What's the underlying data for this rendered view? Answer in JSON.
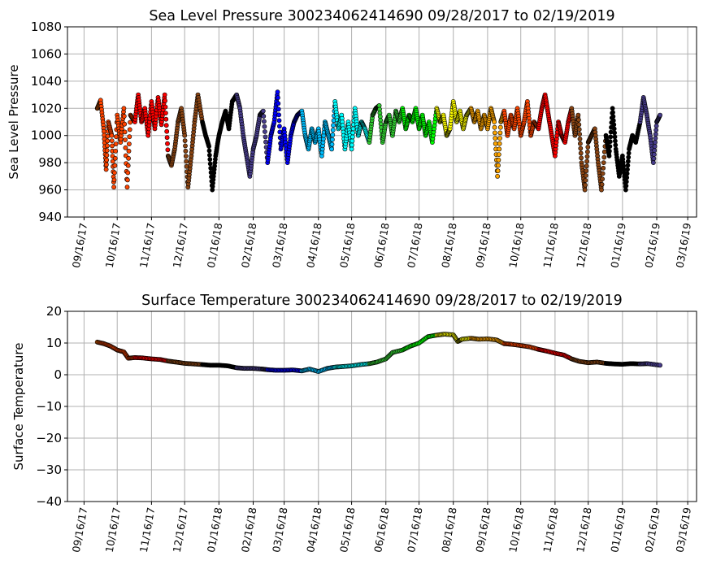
{
  "chart_data": [
    {
      "type": "scatter",
      "title": "Sea Level Pressure 300234062414690  09/28/2017 to 02/19/2019",
      "xlabel": "",
      "ylabel": "Sea Level Pressure",
      "ylim": [
        940,
        1080
      ],
      "yticks": [
        940,
        960,
        980,
        1000,
        1020,
        1040,
        1060,
        1080
      ],
      "xlim": [
        "2017-09-01",
        "2019-03-24"
      ],
      "xtick_labels": [
        "09/16/17",
        "10/16/17",
        "11/16/17",
        "12/16/17",
        "01/16/18",
        "02/16/18",
        "03/16/18",
        "04/16/18",
        "05/16/18",
        "06/16/18",
        "07/16/18",
        "08/16/18",
        "09/16/18",
        "10/16/18",
        "11/16/18",
        "12/16/18",
        "01/16/19",
        "02/16/19",
        "03/16/19"
      ],
      "xtick_dates": [
        "2017-09-16",
        "2017-10-16",
        "2017-11-16",
        "2017-12-16",
        "2018-01-16",
        "2018-02-16",
        "2018-03-16",
        "2018-04-16",
        "2018-05-16",
        "2018-06-16",
        "2018-07-16",
        "2018-08-16",
        "2018-09-16",
        "2018-10-16",
        "2018-11-16",
        "2018-12-16",
        "2019-01-16",
        "2019-02-16",
        "2019-03-16"
      ],
      "grid": true,
      "points": [
        [
          "2017-09-28",
          1020
        ],
        [
          "2017-10-01",
          1026
        ],
        [
          "2017-10-04",
          1003
        ],
        [
          "2017-10-06",
          975
        ],
        [
          "2017-10-08",
          1010
        ],
        [
          "2017-10-11",
          1000
        ],
        [
          "2017-10-13",
          962
        ],
        [
          "2017-10-16",
          1015
        ],
        [
          "2017-10-19",
          995
        ],
        [
          "2017-10-22",
          1020
        ],
        [
          "2017-10-25",
          962
        ],
        [
          "2017-10-28",
          1015
        ],
        [
          "2017-11-01",
          1010
        ],
        [
          "2017-11-04",
          1030
        ],
        [
          "2017-11-07",
          1010
        ],
        [
          "2017-11-10",
          1020
        ],
        [
          "2017-11-13",
          1000
        ],
        [
          "2017-11-16",
          1025
        ],
        [
          "2017-11-19",
          1005
        ],
        [
          "2017-11-22",
          1028
        ],
        [
          "2017-11-25",
          1008
        ],
        [
          "2017-11-28",
          1030
        ],
        [
          "2017-12-01",
          985
        ],
        [
          "2017-12-04",
          978
        ],
        [
          "2017-12-07",
          990
        ],
        [
          "2017-12-10",
          1010
        ],
        [
          "2017-12-13",
          1020
        ],
        [
          "2017-12-16",
          1000
        ],
        [
          "2017-12-19",
          962
        ],
        [
          "2017-12-22",
          985
        ],
        [
          "2017-12-25",
          1010
        ],
        [
          "2017-12-28",
          1030
        ],
        [
          "2018-01-01",
          1010
        ],
        [
          "2018-01-04",
          1000
        ],
        [
          "2018-01-07",
          992
        ],
        [
          "2018-01-10",
          960
        ],
        [
          "2018-01-13",
          985
        ],
        [
          "2018-01-16",
          1000
        ],
        [
          "2018-01-19",
          1010
        ],
        [
          "2018-01-22",
          1018
        ],
        [
          "2018-01-25",
          1005
        ],
        [
          "2018-01-28",
          1025
        ],
        [
          "2018-02-01",
          1030
        ],
        [
          "2018-02-04",
          1020
        ],
        [
          "2018-02-07",
          1000
        ],
        [
          "2018-02-10",
          985
        ],
        [
          "2018-02-13",
          970
        ],
        [
          "2018-02-16",
          990
        ],
        [
          "2018-02-19",
          1000
        ],
        [
          "2018-02-22",
          1015
        ],
        [
          "2018-02-25",
          1018
        ],
        [
          "2018-03-01",
          980
        ],
        [
          "2018-03-04",
          1000
        ],
        [
          "2018-03-07",
          1010
        ],
        [
          "2018-03-10",
          1032
        ],
        [
          "2018-03-13",
          990
        ],
        [
          "2018-03-16",
          1005
        ],
        [
          "2018-03-19",
          980
        ],
        [
          "2018-03-22",
          1000
        ],
        [
          "2018-03-25",
          1010
        ],
        [
          "2018-03-28",
          1015
        ],
        [
          "2018-04-01",
          1018
        ],
        [
          "2018-04-04",
          1000
        ],
        [
          "2018-04-07",
          990
        ],
        [
          "2018-04-10",
          1005
        ],
        [
          "2018-04-13",
          995
        ],
        [
          "2018-04-16",
          1005
        ],
        [
          "2018-04-19",
          985
        ],
        [
          "2018-04-22",
          1010
        ],
        [
          "2018-04-25",
          1000
        ],
        [
          "2018-04-28",
          990
        ],
        [
          "2018-05-01",
          1025
        ],
        [
          "2018-05-04",
          1005
        ],
        [
          "2018-05-07",
          1015
        ],
        [
          "2018-05-10",
          990
        ],
        [
          "2018-05-13",
          1010
        ],
        [
          "2018-05-16",
          990
        ],
        [
          "2018-05-19",
          1020
        ],
        [
          "2018-05-22",
          1000
        ],
        [
          "2018-05-25",
          1010
        ],
        [
          "2018-05-28",
          1005
        ],
        [
          "2018-06-01",
          995
        ],
        [
          "2018-06-04",
          1015
        ],
        [
          "2018-06-07",
          1020
        ],
        [
          "2018-06-10",
          1022
        ],
        [
          "2018-06-13",
          995
        ],
        [
          "2018-06-16",
          1010
        ],
        [
          "2018-06-19",
          1015
        ],
        [
          "2018-06-22",
          1000
        ],
        [
          "2018-06-25",
          1018
        ],
        [
          "2018-06-28",
          1010
        ],
        [
          "2018-07-01",
          1020
        ],
        [
          "2018-07-04",
          1005
        ],
        [
          "2018-07-07",
          1015
        ],
        [
          "2018-07-10",
          1010
        ],
        [
          "2018-07-13",
          1020
        ],
        [
          "2018-07-16",
          1005
        ],
        [
          "2018-07-19",
          1015
        ],
        [
          "2018-07-22",
          1000
        ],
        [
          "2018-07-25",
          1010
        ],
        [
          "2018-07-28",
          995
        ],
        [
          "2018-08-01",
          1020
        ],
        [
          "2018-08-04",
          1010
        ],
        [
          "2018-08-07",
          1015
        ],
        [
          "2018-08-10",
          1000
        ],
        [
          "2018-08-13",
          1005
        ],
        [
          "2018-08-16",
          1025
        ],
        [
          "2018-08-19",
          1010
        ],
        [
          "2018-08-22",
          1018
        ],
        [
          "2018-08-25",
          1005
        ],
        [
          "2018-08-28",
          1015
        ],
        [
          "2018-09-01",
          1020
        ],
        [
          "2018-09-04",
          1010
        ],
        [
          "2018-09-07",
          1018
        ],
        [
          "2018-09-10",
          1005
        ],
        [
          "2018-09-13",
          1015
        ],
        [
          "2018-09-16",
          1005
        ],
        [
          "2018-09-19",
          1020
        ],
        [
          "2018-09-22",
          1010
        ],
        [
          "2018-09-25",
          970
        ],
        [
          "2018-09-28",
          1010
        ],
        [
          "2018-10-01",
          1018
        ],
        [
          "2018-10-04",
          1000
        ],
        [
          "2018-10-07",
          1015
        ],
        [
          "2018-10-10",
          1005
        ],
        [
          "2018-10-13",
          1020
        ],
        [
          "2018-10-16",
          1000
        ],
        [
          "2018-10-19",
          1010
        ],
        [
          "2018-10-22",
          1025
        ],
        [
          "2018-10-25",
          1000
        ],
        [
          "2018-10-28",
          1010
        ],
        [
          "2018-11-01",
          1005
        ],
        [
          "2018-11-04",
          1020
        ],
        [
          "2018-11-07",
          1030
        ],
        [
          "2018-11-10",
          1015
        ],
        [
          "2018-11-13",
          1000
        ],
        [
          "2018-11-16",
          985
        ],
        [
          "2018-11-19",
          1010
        ],
        [
          "2018-11-22",
          1000
        ],
        [
          "2018-11-25",
          995
        ],
        [
          "2018-11-28",
          1010
        ],
        [
          "2018-12-01",
          1020
        ],
        [
          "2018-12-04",
          1000
        ],
        [
          "2018-12-07",
          1015
        ],
        [
          "2018-12-10",
          980
        ],
        [
          "2018-12-13",
          960
        ],
        [
          "2018-12-16",
          995
        ],
        [
          "2018-12-19",
          1000
        ],
        [
          "2018-12-22",
          1005
        ],
        [
          "2018-12-25",
          980
        ],
        [
          "2018-12-28",
          960
        ],
        [
          "2019-01-01",
          1000
        ],
        [
          "2019-01-04",
          985
        ],
        [
          "2019-01-07",
          1020
        ],
        [
          "2019-01-10",
          990
        ],
        [
          "2019-01-13",
          970
        ],
        [
          "2019-01-16",
          985
        ],
        [
          "2019-01-19",
          960
        ],
        [
          "2019-01-22",
          990
        ],
        [
          "2019-01-25",
          1000
        ],
        [
          "2019-01-28",
          995
        ],
        [
          "2019-02-01",
          1010
        ],
        [
          "2019-02-04",
          1028
        ],
        [
          "2019-02-07",
          1015
        ],
        [
          "2019-02-10",
          1000
        ],
        [
          "2019-02-13",
          980
        ],
        [
          "2019-02-16",
          1010
        ],
        [
          "2019-02-19",
          1015
        ]
      ]
    },
    {
      "type": "scatter",
      "title": "Surface Temperature 300234062414690  09/28/2017 to 02/19/2019",
      "xlabel": "",
      "ylabel": "Surface Temperature",
      "ylim": [
        -40,
        20
      ],
      "yticks": [
        -40,
        -30,
        -20,
        -10,
        0,
        10,
        20
      ],
      "xlim": [
        "2017-09-01",
        "2019-03-24"
      ],
      "xtick_labels": [
        "09/16/17",
        "10/16/17",
        "11/16/17",
        "12/16/17",
        "01/16/18",
        "02/16/18",
        "03/16/18",
        "04/16/18",
        "05/16/18",
        "06/16/18",
        "07/16/18",
        "08/16/18",
        "09/16/18",
        "10/16/18",
        "11/16/18",
        "12/16/18",
        "01/16/19",
        "02/16/19",
        "03/16/19"
      ],
      "xtick_dates": [
        "2017-09-16",
        "2017-10-16",
        "2017-11-16",
        "2017-12-16",
        "2018-01-16",
        "2018-02-16",
        "2018-03-16",
        "2018-04-16",
        "2018-05-16",
        "2018-06-16",
        "2018-07-16",
        "2018-08-16",
        "2018-09-16",
        "2018-10-16",
        "2018-11-16",
        "2018-12-16",
        "2019-01-16",
        "2019-02-16",
        "2019-03-16"
      ],
      "grid": true,
      "points": [
        [
          "2017-09-28",
          10.3
        ],
        [
          "2017-10-04",
          9.8
        ],
        [
          "2017-10-10",
          9.0
        ],
        [
          "2017-10-16",
          7.8
        ],
        [
          "2017-10-22",
          7.2
        ],
        [
          "2017-10-26",
          5.2
        ],
        [
          "2017-11-01",
          5.4
        ],
        [
          "2017-11-08",
          5.3
        ],
        [
          "2017-11-16",
          5.0
        ],
        [
          "2017-11-24",
          4.8
        ],
        [
          "2017-12-01",
          4.3
        ],
        [
          "2017-12-08",
          4.0
        ],
        [
          "2017-12-16",
          3.6
        ],
        [
          "2017-12-24",
          3.4
        ],
        [
          "2018-01-01",
          3.2
        ],
        [
          "2018-01-08",
          3.0
        ],
        [
          "2018-01-16",
          3.0
        ],
        [
          "2018-01-24",
          2.8
        ],
        [
          "2018-02-01",
          2.2
        ],
        [
          "2018-02-08",
          2.0
        ],
        [
          "2018-02-16",
          2.0
        ],
        [
          "2018-02-24",
          1.8
        ],
        [
          "2018-03-01",
          1.6
        ],
        [
          "2018-03-08",
          1.4
        ],
        [
          "2018-03-16",
          1.4
        ],
        [
          "2018-03-24",
          1.5
        ],
        [
          "2018-04-01",
          1.2
        ],
        [
          "2018-04-08",
          1.8
        ],
        [
          "2018-04-16",
          1.0
        ],
        [
          "2018-04-24",
          2.0
        ],
        [
          "2018-05-01",
          2.4
        ],
        [
          "2018-05-08",
          2.6
        ],
        [
          "2018-05-16",
          2.8
        ],
        [
          "2018-05-24",
          3.2
        ],
        [
          "2018-06-01",
          3.5
        ],
        [
          "2018-06-08",
          4.0
        ],
        [
          "2018-06-16",
          5.0
        ],
        [
          "2018-06-22",
          7.0
        ],
        [
          "2018-07-01",
          7.8
        ],
        [
          "2018-07-08",
          9.0
        ],
        [
          "2018-07-16",
          10.0
        ],
        [
          "2018-07-24",
          12.0
        ],
        [
          "2018-08-01",
          12.5
        ],
        [
          "2018-08-08",
          12.8
        ],
        [
          "2018-08-16",
          12.6
        ],
        [
          "2018-08-20",
          10.5
        ],
        [
          "2018-08-24",
          11.2
        ],
        [
          "2018-09-01",
          11.5
        ],
        [
          "2018-09-08",
          11.2
        ],
        [
          "2018-09-16",
          11.3
        ],
        [
          "2018-09-24",
          11.0
        ],
        [
          "2018-10-01",
          9.8
        ],
        [
          "2018-10-08",
          9.6
        ],
        [
          "2018-10-16",
          9.2
        ],
        [
          "2018-10-24",
          8.8
        ],
        [
          "2018-11-01",
          8.0
        ],
        [
          "2018-11-08",
          7.5
        ],
        [
          "2018-11-16",
          6.8
        ],
        [
          "2018-11-24",
          6.2
        ],
        [
          "2018-12-01",
          5.0
        ],
        [
          "2018-12-08",
          4.2
        ],
        [
          "2018-12-16",
          3.8
        ],
        [
          "2018-12-24",
          4.0
        ],
        [
          "2019-01-01",
          3.6
        ],
        [
          "2019-01-08",
          3.4
        ],
        [
          "2019-01-16",
          3.3
        ],
        [
          "2019-01-24",
          3.5
        ],
        [
          "2019-02-01",
          3.4
        ],
        [
          "2019-02-08",
          3.5
        ],
        [
          "2019-02-19",
          3.0
        ]
      ]
    }
  ],
  "color_by_month": {
    "2017-09": "#ff6a00",
    "2017-10": "#ff4500",
    "2017-11": "#ff0000",
    "2017-12": "#8b4513",
    "2018-01": "#000000",
    "2018-02": "#483d8b",
    "2018-03": "#0000ff",
    "2018-04": "#00bfff",
    "2018-05": "#00ffff",
    "2018-06": "#32cd32",
    "2018-07": "#00ff00",
    "2018-08": "#ffff00",
    "2018-09": "#ffa500",
    "2018-10": "#ff4500",
    "2018-11": "#ff0000",
    "2018-12": "#8b4513",
    "2019-01": "#000000",
    "2019-02": "#483d8b"
  }
}
